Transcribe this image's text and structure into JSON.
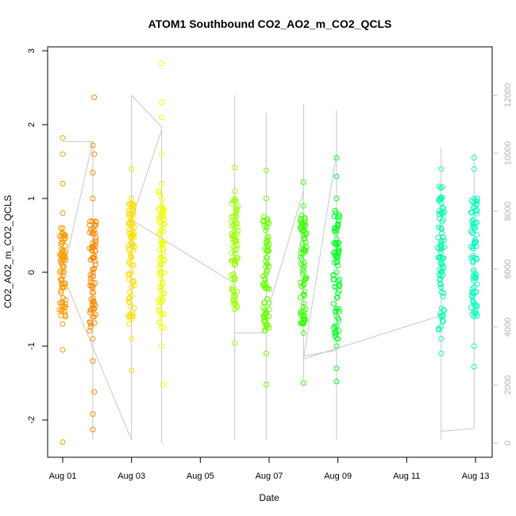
{
  "chart_data": {
    "type": "scatter",
    "title": "ATOM1 Southbound CO2_AO2_m_CO2_QCLS",
    "xlabel": "Date",
    "ylabel": "CO2_AO2_m_CO2_QCLS",
    "x_type": "date",
    "xlim": [
      "2016-08-01",
      "2016-08-13"
    ],
    "ylim": [
      -2.5,
      3.0
    ],
    "x_ticks": [
      "2016-08-01",
      "2016-08-03",
      "2016-08-05",
      "2016-08-07",
      "2016-08-09",
      "2016-08-11",
      "2016-08-13"
    ],
    "x_tick_labels": [
      "Aug 01",
      "Aug 03",
      "Aug 05",
      "Aug 07",
      "Aug 09",
      "Aug 11",
      "Aug 13"
    ],
    "y_ticks": [
      -2,
      -1,
      0,
      1,
      2,
      3
    ],
    "y_tick_labels": [
      "-2",
      "-1",
      "0",
      "1",
      "2",
      "3"
    ],
    "y2_ticks": [
      0,
      2000,
      4000,
      6000,
      8000,
      10000,
      12000
    ],
    "y2_tick_labels": [
      "0",
      "2000",
      "4000",
      "6000",
      "8000",
      "10000",
      "12000"
    ],
    "y2lim": [
      -500,
      12500
    ],
    "y2_color": "#bbbbbb",
    "grid": false,
    "marker": "open-circle",
    "series": [
      {
        "color": "#ff9900",
        "points": [
          [
            "2016-08-01T00:00",
            1.82
          ],
          [
            "2016-08-01T00:00",
            1.6
          ],
          [
            "2016-08-01T00:00",
            1.2
          ],
          [
            "2016-08-01T00:00",
            0.8
          ],
          [
            "2016-08-01T00:00",
            0.4
          ],
          [
            "2016-08-01T00:00",
            0.0
          ],
          [
            "2016-08-01T00:00",
            -0.4
          ],
          [
            "2016-08-01T00:00",
            -0.7
          ],
          [
            "2016-08-01T00:00",
            -1.05
          ],
          [
            "2016-08-01T00:00",
            -2.3
          ],
          [
            "2016-08-01T00:00",
            0.6
          ],
          [
            "2016-08-01T00:00",
            0.2
          ],
          [
            "2016-08-01T00:00",
            -0.2
          ]
        ]
      },
      {
        "color": "#ff8800",
        "points": [
          [
            "2016-08-01T21:00",
            1.72
          ],
          [
            "2016-08-01T21:00",
            1.35
          ],
          [
            "2016-08-01T21:00",
            1.0
          ],
          [
            "2016-08-01T21:00",
            0.6
          ],
          [
            "2016-08-01T21:00",
            0.2
          ],
          [
            "2016-08-01T21:00",
            -0.2
          ],
          [
            "2016-08-01T21:00",
            -0.6
          ],
          [
            "2016-08-01T21:00",
            -0.9
          ],
          [
            "2016-08-01T21:00",
            -1.2
          ],
          [
            "2016-08-01T21:00",
            -1.92
          ],
          [
            "2016-08-01T21:00",
            -2.13
          ],
          [
            "2016-08-01T22:00",
            2.37
          ],
          [
            "2016-08-01T22:00",
            1.6
          ],
          [
            "2016-08-01T22:00",
            -1.62
          ],
          [
            "2016-08-01T21:00",
            0.4
          ],
          [
            "2016-08-01T21:00",
            0.0
          ],
          [
            "2016-08-01T21:00",
            -0.4
          ]
        ]
      },
      {
        "color": "#ffdd00",
        "points": [
          [
            "2016-08-03T00:00",
            1.4
          ],
          [
            "2016-08-03T00:00",
            1.0
          ],
          [
            "2016-08-03T00:00",
            0.6
          ],
          [
            "2016-08-03T00:00",
            0.2
          ],
          [
            "2016-08-03T00:00",
            -0.2
          ],
          [
            "2016-08-03T00:00",
            -0.6
          ],
          [
            "2016-08-03T00:00",
            -0.9
          ],
          [
            "2016-08-03T00:00",
            -1.33
          ],
          [
            "2016-08-03T00:00",
            0.4
          ],
          [
            "2016-08-03T00:00",
            0.0
          ]
        ]
      },
      {
        "color": "#eeff00",
        "points": [
          [
            "2016-08-03T21:00",
            2.83
          ],
          [
            "2016-08-03T21:00",
            2.3
          ],
          [
            "2016-08-03T21:00",
            2.1
          ],
          [
            "2016-08-03T21:00",
            1.6
          ],
          [
            "2016-08-03T21:00",
            1.2
          ],
          [
            "2016-08-03T21:00",
            0.8
          ],
          [
            "2016-08-03T21:00",
            0.4
          ],
          [
            "2016-08-03T21:00",
            0.0
          ],
          [
            "2016-08-03T21:00",
            -0.4
          ],
          [
            "2016-08-03T21:00",
            -0.75
          ],
          [
            "2016-08-03T21:00",
            -1.0
          ],
          [
            "2016-08-03T22:00",
            -1.52
          ],
          [
            "2016-08-03T21:00",
            0.2
          ],
          [
            "2016-08-03T21:00",
            -0.2
          ]
        ]
      },
      {
        "color": "#99ff00",
        "points": [
          [
            "2016-08-06T00:00",
            1.42
          ],
          [
            "2016-08-06T00:00",
            1.1
          ],
          [
            "2016-08-06T00:00",
            0.7
          ],
          [
            "2016-08-06T00:00",
            0.3
          ],
          [
            "2016-08-06T00:00",
            -0.1
          ],
          [
            "2016-08-06T00:00",
            -0.5
          ],
          [
            "2016-08-06T00:00",
            -0.96
          ],
          [
            "2016-08-06T00:00",
            0.5
          ],
          [
            "2016-08-06T00:00",
            0.1
          ]
        ]
      },
      {
        "color": "#66ff00",
        "points": [
          [
            "2016-08-06T22:00",
            1.38
          ],
          [
            "2016-08-06T22:00",
            1.0
          ],
          [
            "2016-08-06T22:00",
            0.6
          ],
          [
            "2016-08-06T22:00",
            0.2
          ],
          [
            "2016-08-06T22:00",
            -0.2
          ],
          [
            "2016-08-06T22:00",
            -0.6
          ],
          [
            "2016-08-06T22:00",
            -1.1
          ],
          [
            "2016-08-06T22:00",
            -1.52
          ],
          [
            "2016-08-06T22:00",
            0.4
          ],
          [
            "2016-08-06T22:00",
            0.0
          ]
        ]
      },
      {
        "color": "#33ff00",
        "points": [
          [
            "2016-08-08T00:00",
            1.22
          ],
          [
            "2016-08-08T00:00",
            0.9
          ],
          [
            "2016-08-08T00:00",
            0.5
          ],
          [
            "2016-08-08T00:00",
            0.1
          ],
          [
            "2016-08-08T00:00",
            -0.3
          ],
          [
            "2016-08-08T00:00",
            -0.82
          ],
          [
            "2016-08-08T00:00",
            -1.5
          ],
          [
            "2016-08-08T00:00",
            0.3
          ]
        ]
      },
      {
        "color": "#00ff22",
        "points": [
          [
            "2016-08-08T23:00",
            1.55
          ],
          [
            "2016-08-08T23:00",
            1.3
          ],
          [
            "2016-08-08T23:00",
            1.0
          ],
          [
            "2016-08-08T23:00",
            0.6
          ],
          [
            "2016-08-08T23:00",
            0.2
          ],
          [
            "2016-08-08T23:00",
            -0.2
          ],
          [
            "2016-08-08T23:00",
            -0.6
          ],
          [
            "2016-08-08T23:00",
            -1.0
          ],
          [
            "2016-08-08T23:00",
            -1.3
          ],
          [
            "2016-08-08T23:00",
            -1.48
          ],
          [
            "2016-08-08T23:00",
            0.4
          ],
          [
            "2016-08-08T23:00",
            0.0
          ]
        ]
      },
      {
        "color": "#00ffaa",
        "points": [
          [
            "2016-08-12T00:00",
            1.4
          ],
          [
            "2016-08-12T00:00",
            1.0
          ],
          [
            "2016-08-12T00:00",
            0.6
          ],
          [
            "2016-08-12T00:00",
            0.2
          ],
          [
            "2016-08-12T00:00",
            -0.2
          ],
          [
            "2016-08-12T00:00",
            -0.6
          ],
          [
            "2016-08-12T00:00",
            -0.9
          ],
          [
            "2016-08-12T00:00",
            -1.1
          ],
          [
            "2016-08-12T00:00",
            0.4
          ],
          [
            "2016-08-12T00:00",
            0.0
          ]
        ]
      },
      {
        "color": "#00ffbb",
        "points": [
          [
            "2016-08-12T23:00",
            1.55
          ],
          [
            "2016-08-12T23:00",
            1.4
          ],
          [
            "2016-08-12T23:00",
            1.0
          ],
          [
            "2016-08-12T23:00",
            0.6
          ],
          [
            "2016-08-12T23:00",
            0.2
          ],
          [
            "2016-08-12T23:00",
            -0.2
          ],
          [
            "2016-08-12T23:00",
            -0.6
          ],
          [
            "2016-08-12T23:00",
            -1.0
          ],
          [
            "2016-08-12T23:00",
            -1.28
          ],
          [
            "2016-08-12T23:00",
            0.4
          ],
          [
            "2016-08-12T23:00",
            0.0
          ]
        ]
      }
    ],
    "dense_bands": [
      {
        "color": "#ff9900",
        "x": "2016-08-01T00:00",
        "y_range": [
          -0.6,
          0.6
        ]
      },
      {
        "color": "#ff8800",
        "x": "2016-08-01T21:00",
        "y_range": [
          -0.8,
          0.7
        ]
      },
      {
        "color": "#ffdd00",
        "x": "2016-08-03T00:00",
        "y_range": [
          -0.7,
          1.0
        ]
      },
      {
        "color": "#eeff00",
        "x": "2016-08-03T21:00",
        "y_range": [
          -0.75,
          1.1
        ]
      },
      {
        "color": "#99ff00",
        "x": "2016-08-06T00:00",
        "y_range": [
          -0.5,
          1.0
        ]
      },
      {
        "color": "#66ff00",
        "x": "2016-08-06T22:00",
        "y_range": [
          -0.8,
          0.8
        ]
      },
      {
        "color": "#33ff00",
        "x": "2016-08-08T00:00",
        "y_range": [
          -0.7,
          0.8
        ]
      },
      {
        "color": "#00ff22",
        "x": "2016-08-08T23:00",
        "y_range": [
          -0.9,
          0.85
        ]
      },
      {
        "color": "#00ffaa",
        "x": "2016-08-12T00:00",
        "y_range": [
          -0.8,
          1.2
        ]
      },
      {
        "color": "#00ffbb",
        "x": "2016-08-12T23:00",
        "y_range": [
          -0.6,
          1.0
        ]
      }
    ],
    "secondary_series": {
      "color": "#c8c8c8",
      "points": [
        [
          "2016-08-01T00:00",
          10400
        ],
        [
          "2016-08-01T21:00",
          10400
        ],
        [
          "2016-08-01T21:00",
          100
        ],
        [
          "2016-08-01T21:00",
          10400
        ],
        [
          "2016-08-01T00:00",
          5800
        ],
        [
          "2016-08-03T00:00",
          100
        ],
        [
          "2016-08-03T00:00",
          12000
        ],
        [
          "2016-08-03T21:00",
          10900
        ],
        [
          "2016-08-03T21:00",
          0
        ],
        [
          "2016-08-03T21:00",
          10800
        ],
        [
          "2016-08-03T00:00",
          7700
        ],
        [
          "2016-08-06T00:00",
          5500
        ],
        [
          "2016-08-06T00:00",
          100
        ],
        [
          "2016-08-06T00:00",
          12000
        ],
        [
          "2016-08-06T00:00",
          3800
        ],
        [
          "2016-08-06T22:00",
          3800
        ],
        [
          "2016-08-06T22:00",
          100
        ],
        [
          "2016-08-06T22:00",
          11400
        ],
        [
          "2016-08-06T22:00",
          4400
        ],
        [
          "2016-08-08T00:00",
          8700
        ],
        [
          "2016-08-08T00:00",
          2200
        ],
        [
          "2016-08-08T00:00",
          11700
        ],
        [
          "2016-08-08T00:00",
          3000
        ],
        [
          "2016-08-08T23:00",
          3200
        ],
        [
          "2016-08-08T23:00",
          100
        ],
        [
          "2016-08-08T23:00",
          11500
        ],
        [
          "2016-08-08T23:00",
          10000
        ],
        [
          "2016-08-08T00:00",
          2900
        ],
        [
          "2016-08-12T00:00",
          4400
        ],
        [
          "2016-08-12T00:00",
          100
        ],
        [
          "2016-08-12T00:00",
          10200
        ],
        [
          "2016-08-12T00:00",
          400
        ],
        [
          "2016-08-12T23:00",
          500
        ],
        [
          "2016-08-12T23:00",
          10000
        ],
        [
          "2016-08-12T23:00",
          4700
        ]
      ]
    }
  }
}
